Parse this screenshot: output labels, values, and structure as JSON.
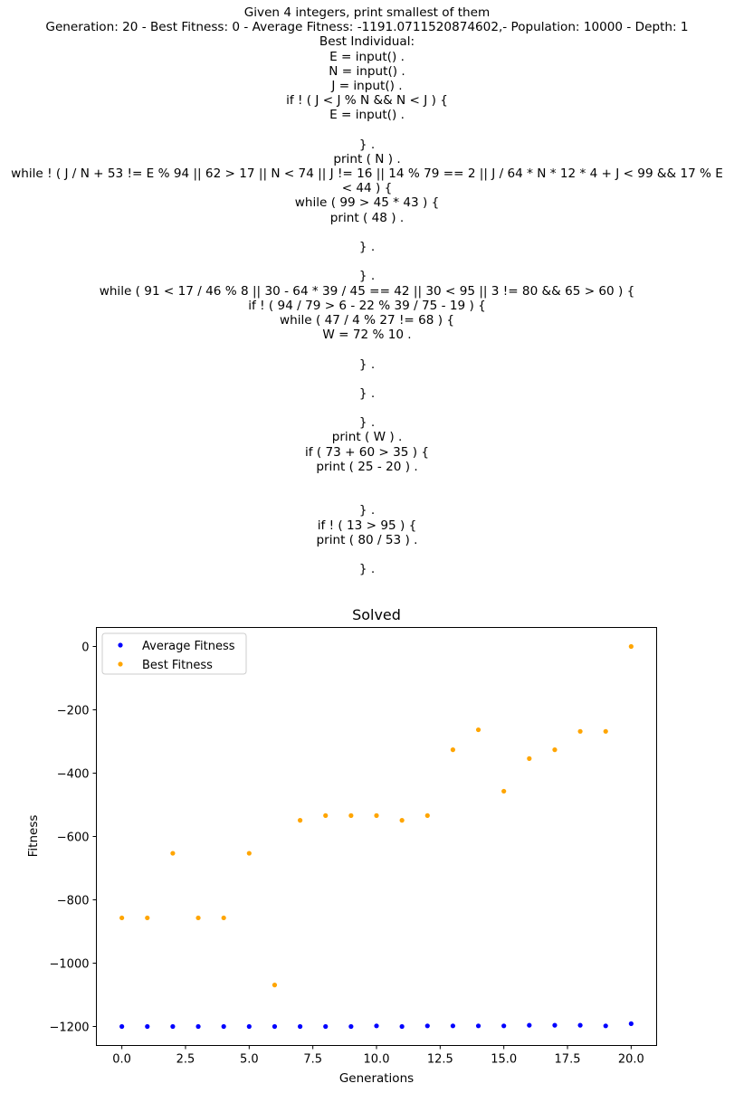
{
  "header": {
    "lines": [
      "Given 4 integers, print smallest of them",
      "Generation: 20 - Best Fitness: 0 - Average Fitness: -1191.0711520874602,- Population: 10000 - Depth: 1",
      "Best Individual:",
      "E = input() .",
      "N = input() .",
      "J = input() .",
      "if ! ( J < J % N && N < J ) {",
      "E = input() .",
      "",
      "} .",
      "print ( N ) .",
      "while ! ( J / N + 53 != E % 94 || 62 > 17 || N < 74 || J != 16 || 14 % 79 == 2 || J / 64 * N * 12 * 4 + J < 99 && 17 % E",
      "< 44 ) {",
      "while ( 99 > 45 * 43 ) {",
      "print ( 48 ) .",
      "",
      "} .",
      "",
      "} .",
      "while ( 91 < 17 / 46 % 8 || 30 - 64 * 39 / 45 == 42 || 30 < 95 || 3 != 80 && 65 > 60 ) {",
      "if ! ( 94 / 79 > 6 - 22 % 39 / 75 - 19 ) {",
      "while ( 47 / 4 % 27 != 68 ) {",
      "W = 72 % 10 .",
      "",
      "} .",
      "",
      "} .",
      "",
      "} .",
      "print ( W ) .",
      "if ( 73 + 60 > 35 ) {",
      "print ( 25 - 20 ) .",
      "",
      "",
      "} .",
      "if ! ( 13 > 95 ) {",
      "print ( 80 / 53 ) .",
      "",
      "} ."
    ]
  },
  "chart_data": {
    "type": "scatter",
    "title": "Solved",
    "xlabel": "Generations",
    "ylabel": "Fitness",
    "xlim": [
      -1,
      21
    ],
    "ylim": [
      -1260,
      60
    ],
    "xticks": [
      0.0,
      2.5,
      5.0,
      7.5,
      10.0,
      12.5,
      15.0,
      17.5,
      20.0
    ],
    "xtick_labels": [
      "0.0",
      "2.5",
      "5.0",
      "7.5",
      "10.0",
      "12.5",
      "15.0",
      "17.5",
      "20.0"
    ],
    "yticks": [
      0,
      -200,
      -400,
      -600,
      -800,
      -1000,
      -1200
    ],
    "ytick_labels": [
      "0",
      "−200",
      "−400",
      "−600",
      "−800",
      "−1000",
      "−1200"
    ],
    "grid": false,
    "legend": "upper-left",
    "x": [
      0,
      1,
      2,
      3,
      4,
      5,
      6,
      7,
      8,
      9,
      10,
      11,
      12,
      13,
      14,
      15,
      16,
      17,
      18,
      19,
      20
    ],
    "series": [
      {
        "name": "Average Fitness",
        "color": "#0000ff",
        "values": [
          -1200,
          -1200,
          -1200,
          -1200,
          -1200,
          -1200,
          -1200,
          -1200,
          -1200,
          -1200,
          -1198,
          -1200,
          -1198,
          -1198,
          -1198,
          -1198,
          -1196,
          -1196,
          -1196,
          -1198,
          -1191
        ]
      },
      {
        "name": "Best Fitness",
        "color": "#ffa500",
        "values": [
          -857,
          -857,
          -653,
          -857,
          -857,
          -653,
          -1069,
          -549,
          -534,
          -534,
          -534,
          -549,
          -534,
          -326,
          -263,
          -457,
          -354,
          -326,
          -268,
          -268,
          0
        ]
      }
    ]
  }
}
